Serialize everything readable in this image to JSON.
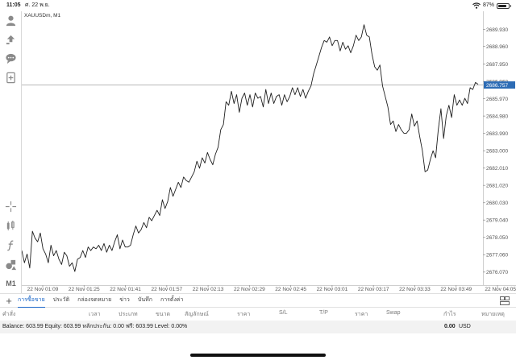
{
  "status_bar": {
    "time": "11:05",
    "date": "ศ. 22 พ.ย.",
    "battery": "87%",
    "battery_level": 0.87
  },
  "chart": {
    "symbol_label": "XAUUSDm, M1",
    "current_price_label": "2686.757",
    "current_price": 2686.757
  },
  "chart_data": {
    "type": "line",
    "title": "XAUUSDm, M1",
    "xlabel": "",
    "ylabel": "",
    "ylim": [
      2675.6,
      2690.6
    ],
    "y_ticks": [
      "2689.930",
      "2688.960",
      "2687.950",
      "2686.960",
      "2685.970",
      "2684.980",
      "2683.990",
      "2683.000",
      "2682.010",
      "2681.020",
      "2680.030",
      "2679.040",
      "2678.050",
      "2677.060",
      "2676.070"
    ],
    "x_ticks": [
      "22 Nov 01:09",
      "22 Nov 01:25",
      "22 Nov 01:41",
      "22 Nov 01:57",
      "22 Nov 02:13",
      "22 Nov 02:29",
      "22 Nov 02:45",
      "22 Nov 03:01",
      "22 Nov 03:17",
      "22 Nov 03:33",
      "22 Nov 03:49",
      "22 Nov 04:05"
    ],
    "series": [
      {
        "values": [
          2677.3,
          2676.6,
          2677.1,
          2676.3,
          2678.4,
          2678.0,
          2677.8,
          2678.3,
          2677.4,
          2677.1,
          2676.6,
          2677.6,
          2677.0,
          2677.3,
          2676.8,
          2676.5,
          2677.2,
          2677.0,
          2676.4,
          2676.6,
          2676.1,
          2676.8,
          2676.9,
          2677.3,
          2676.9,
          2677.5,
          2677.3,
          2677.5,
          2677.4,
          2677.6,
          2677.3,
          2677.7,
          2677.2,
          2677.6,
          2677.3,
          2677.8,
          2678.2,
          2677.4,
          2677.9,
          2677.5,
          2677.5,
          2677.6,
          2678.2,
          2678.7,
          2678.3,
          2678.5,
          2678.9,
          2678.6,
          2679.2,
          2679.0,
          2679.3,
          2679.6,
          2679.3,
          2680.2,
          2679.7,
          2680.1,
          2680.9,
          2680.4,
          2680.8,
          2681.2,
          2680.9,
          2681.5,
          2681.3,
          2681.2,
          2681.5,
          2681.8,
          2682.4,
          2682.0,
          2682.6,
          2682.3,
          2682.9,
          2682.5,
          2682.2,
          2682.8,
          2683.2,
          2684.2,
          2684.5,
          2685.8,
          2685.6,
          2686.4,
          2685.7,
          2686.2,
          2685.2,
          2686.0,
          2686.3,
          2685.6,
          2686.2,
          2685.5,
          2686.3,
          2686.0,
          2686.1,
          2685.5,
          2686.5,
          2685.7,
          2686.3,
          2685.7,
          2686.1,
          2686.2,
          2685.6,
          2686.2,
          2685.8,
          2686.1,
          2686.6,
          2686.2,
          2686.6,
          2686.1,
          2686.5,
          2686.0,
          2686.4,
          2686.7,
          2687.4,
          2687.9,
          2688.4,
          2688.9,
          2689.3,
          2689.2,
          2689.5,
          2689.0,
          2689.3,
          2689.3,
          2688.7,
          2689.2,
          2688.8,
          2689.0,
          2688.6,
          2689.0,
          2689.6,
          2689.3,
          2689.5,
          2690.2,
          2689.6,
          2689.5,
          2688.5,
          2687.8,
          2687.6,
          2687.9,
          2686.7,
          2686.1,
          2685.5,
          2684.5,
          2684.7,
          2684.1,
          2684.5,
          2684.2,
          2684.0,
          2684.0,
          2684.2,
          2685.1,
          2684.4,
          2684.7,
          2683.8,
          2683.0,
          2681.8,
          2681.9,
          2682.5,
          2683.0,
          2682.6,
          2684.2,
          2685.4,
          2683.7,
          2685.0,
          2685.6,
          2684.9,
          2686.2,
          2685.6,
          2685.9,
          2685.6,
          2686.0,
          2685.7,
          2686.6,
          2686.5,
          2686.9,
          2686.8
        ]
      }
    ],
    "grid": false,
    "current_price_line": 2686.757
  },
  "tabs": {
    "add_icon": "plus-icon",
    "items": [
      "การซื้อขาย",
      "ประวัติ",
      "กล่องจดหมาย",
      "ข่าว",
      "บันทึก",
      "การตั้งค่า"
    ],
    "active_index": 0,
    "layout_icon": "layout-icon"
  },
  "trade_columns": [
    "คำสั่ง",
    "เวลา",
    "ประเภท",
    "ขนาด",
    "สัญลักษณ์",
    "ราคา",
    "S/L",
    "T/P",
    "ราคา",
    "Swap",
    "กำไร",
    "หมายเหตุ"
  ],
  "account": {
    "summary": "Balance: 603.99 Equity: 603.99 หลักประกัน: 0.00 ฟรี: 603.99 Level: 0.00%",
    "profit": "0.00",
    "currency": "USD"
  },
  "toolbar": {
    "timeframe_label": "M1"
  },
  "colors": {
    "accent": "#1a66c8",
    "price_tag": "#2d6cb5",
    "line": "#1e1e1e",
    "price_line": "#a0a0a0"
  }
}
